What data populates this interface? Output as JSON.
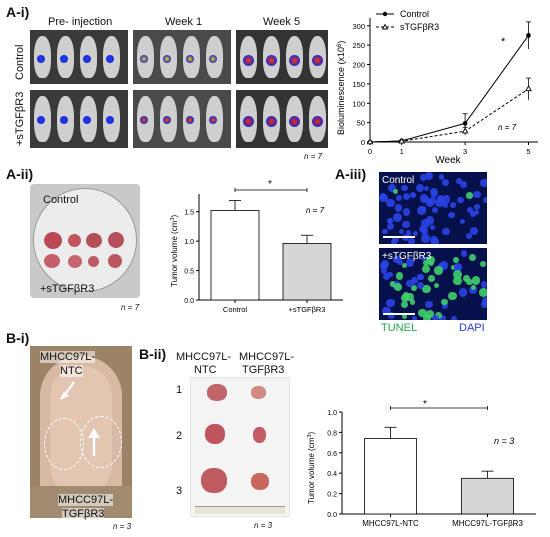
{
  "panels": {
    "a_i": "A-i)",
    "a_ii": "A-ii)",
    "a_iii": "A-iii)",
    "b_i": "B-i)",
    "b_ii": "B-ii)"
  },
  "imaging": {
    "columns": [
      "Pre- injection",
      "Week 1",
      "Week 5"
    ],
    "rows": [
      "Control",
      "+sTGFβR3"
    ],
    "n": "n = 7"
  },
  "biolum_chart": {
    "ylabel": "Bioluminescence (x10",
    "ylabel_sup": "6",
    "ylabel_end": ")",
    "xlabel": "Week",
    "legend": [
      "Control",
      "sTGFβR3"
    ],
    "star": "*",
    "n": "n = 7",
    "yticks": [
      "0",
      "50",
      "100",
      "150",
      "200",
      "250",
      "300"
    ],
    "xticks": [
      "0",
      "1",
      "3",
      "5"
    ]
  },
  "dish": {
    "label_top": "Control",
    "label_bottom": "+sTGFβR3",
    "n": "n = 7"
  },
  "tumor_bar_a": {
    "ylabel": "Tumor volume (cm",
    "ylabel_sup": "3",
    "ylabel_end": ")",
    "categories": [
      "Control",
      "+sTGFβR3"
    ],
    "yticks": [
      "0.0",
      "0.5",
      "1.0",
      "1.5"
    ],
    "star": "*",
    "n": "n = 7"
  },
  "tunel": {
    "top_label": "Control",
    "bottom_label": "+sTGFβR3",
    "legend_tunel": "TUNEL",
    "legend_dapi": "DAPI"
  },
  "mouse_photo": {
    "label_top_1": "MHCC97L-",
    "label_top_2": "NTC",
    "label_bottom_1": "MHCC97L-",
    "label_bottom_2": "TGFβR3",
    "n": "n = 3"
  },
  "excised": {
    "col1_a": "MHCC97L-",
    "col1_b": "NTC",
    "col2_a": "MHCC97L-",
    "col2_b": "TGFβR3",
    "rows": [
      "1",
      "2",
      "3"
    ],
    "n": "n = 3"
  },
  "tumor_bar_b": {
    "ylabel": "Tumor volume (cm",
    "ylabel_sup": "3",
    "ylabel_end": ")",
    "categories": [
      "MHCC97L-NTC",
      "MHCC97L-TGFβR3"
    ],
    "yticks": [
      "0.0",
      "0.2",
      "0.4",
      "0.6",
      "0.8",
      "1.0"
    ],
    "star": "*",
    "n": "n = 3"
  },
  "chart_data": [
    {
      "type": "line",
      "xlabel": "Week",
      "ylabel": "Bioluminescence (x10^6)",
      "x": [
        0,
        1,
        3,
        5
      ],
      "xlim": [
        0,
        5.3
      ],
      "ylim": [
        0,
        320
      ],
      "series": [
        {
          "name": "Control",
          "values": [
            0,
            3,
            48,
            275
          ],
          "errors": [
            1,
            2,
            25,
            35
          ],
          "marker": "circle",
          "line": "solid"
        },
        {
          "name": "sTGFβR3",
          "values": [
            0,
            2,
            28,
            137
          ],
          "errors": [
            1,
            1,
            10,
            28
          ],
          "marker": "triangle",
          "line": "dashed"
        }
      ],
      "legend": "top-left",
      "annotation": "*"
    },
    {
      "type": "bar",
      "categories": [
        "Control",
        "+sTGFβR3"
      ],
      "values": [
        1.52,
        0.96
      ],
      "errors": [
        0.17,
        0.14
      ],
      "colors": [
        "#ffffff",
        "#d6d6d6"
      ],
      "ylabel": "Tumor volume (cm3)",
      "ylim": [
        0,
        1.8
      ]
    },
    {
      "type": "bar",
      "categories": [
        "MHCC97L-NTC",
        "MHCC97L-TGFβR3"
      ],
      "values": [
        0.74,
        0.35
      ],
      "errors": [
        0.11,
        0.07
      ],
      "colors": [
        "#ffffff",
        "#d6d6d6"
      ],
      "ylabel": "Tumor volume (cm3)",
      "ylim": [
        0,
        1.0
      ]
    }
  ]
}
